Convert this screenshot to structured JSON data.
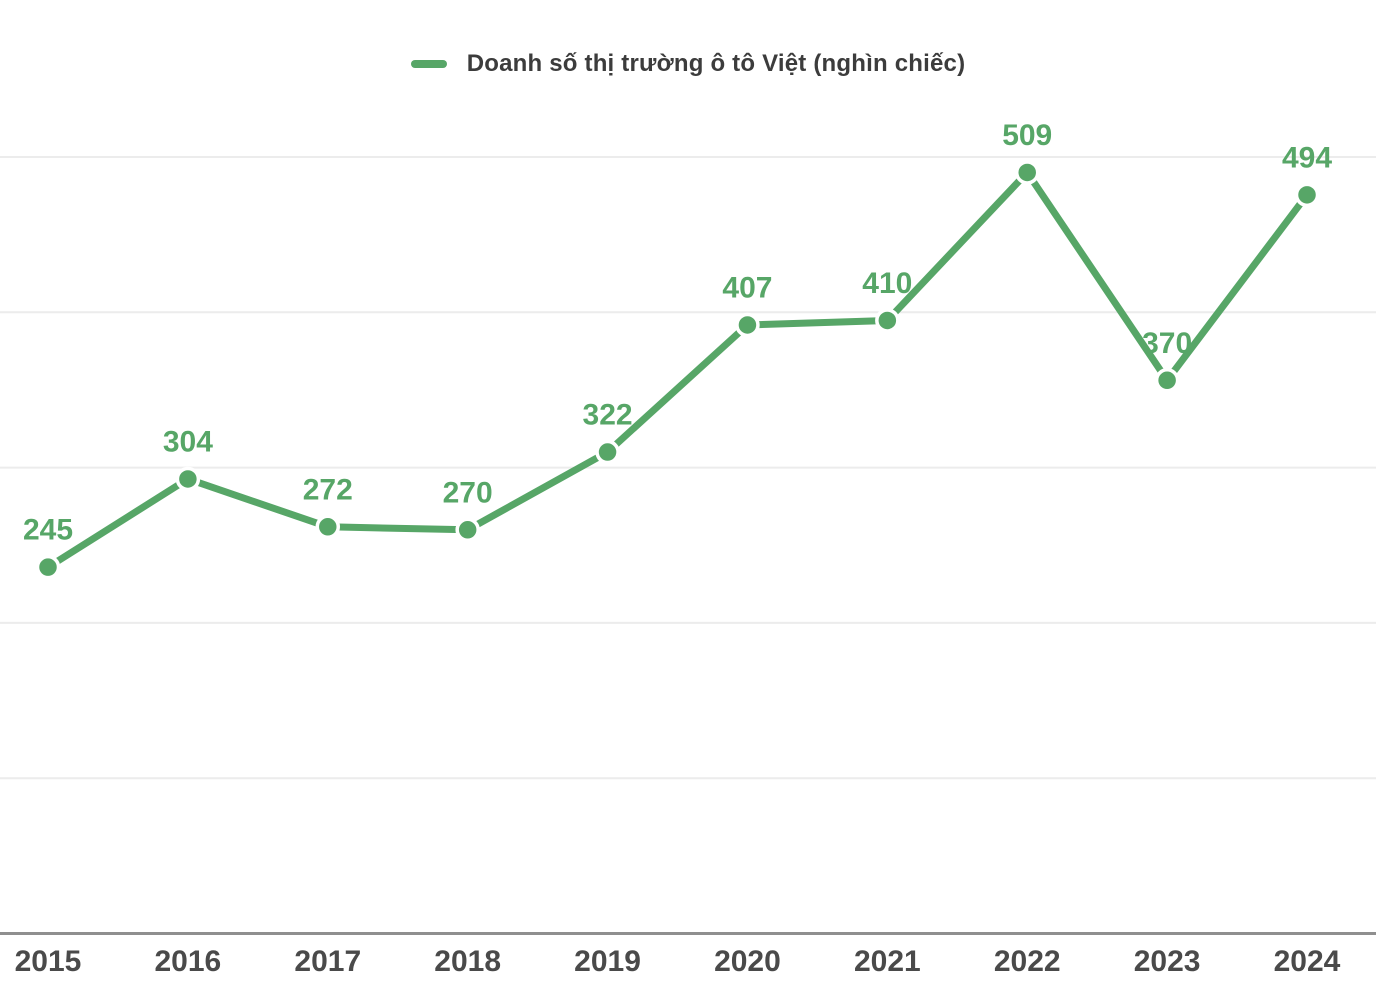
{
  "legend": {
    "label": "Doanh số thị trường ô tô Việt (nghìn chiếc)"
  },
  "chart_data": {
    "type": "line",
    "title": "",
    "xlabel": "",
    "ylabel": "",
    "categories": [
      "2015",
      "2016",
      "2017",
      "2018",
      "2019",
      "2020",
      "2021",
      "2022",
      "2023",
      "2024"
    ],
    "series": [
      {
        "name": "Doanh số thị trường ô tô Việt (nghìn chiếc)",
        "values": [
          245,
          304,
          272,
          270,
          322,
          407,
          410,
          509,
          370,
          494
        ]
      }
    ],
    "point_labels": [
      "245",
      "304",
      "272",
      "270",
      "322",
      "407",
      "410",
      "509",
      "370",
      "494"
    ],
    "ylim": [
      0,
      519
    ],
    "grid": "horizontal gridlines only, no y-axis tick labels",
    "legend_position": "top-center",
    "colors": {
      "line": "#57a667",
      "point_fill": "#57a667",
      "point_ring": "#ffffff",
      "data_label": "#57a667",
      "gridline": "#ececec",
      "axis_line": "#8f8f8f",
      "x_tick_label": "#4a4a4a",
      "legend_text": "#3c3c3c",
      "background": "#ffffff"
    }
  }
}
